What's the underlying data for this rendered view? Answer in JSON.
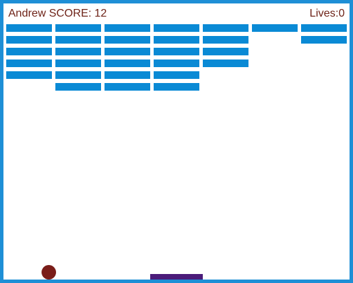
{
  "hud": {
    "player_name": "Andrew",
    "score_label": "SCORE:",
    "score": 12,
    "lives_label": "Lives:",
    "lives": 0
  },
  "bricks": {
    "columns": 7,
    "remaining_rows_per_column": [
      5,
      6,
      6,
      6,
      4,
      1,
      2
    ]
  },
  "colors": {
    "frame": "#1e8fd6",
    "brick": "#0a8ad5",
    "text": "#6e2318",
    "ball": "#7a1d19",
    "paddle": "#4b1c7a"
  }
}
